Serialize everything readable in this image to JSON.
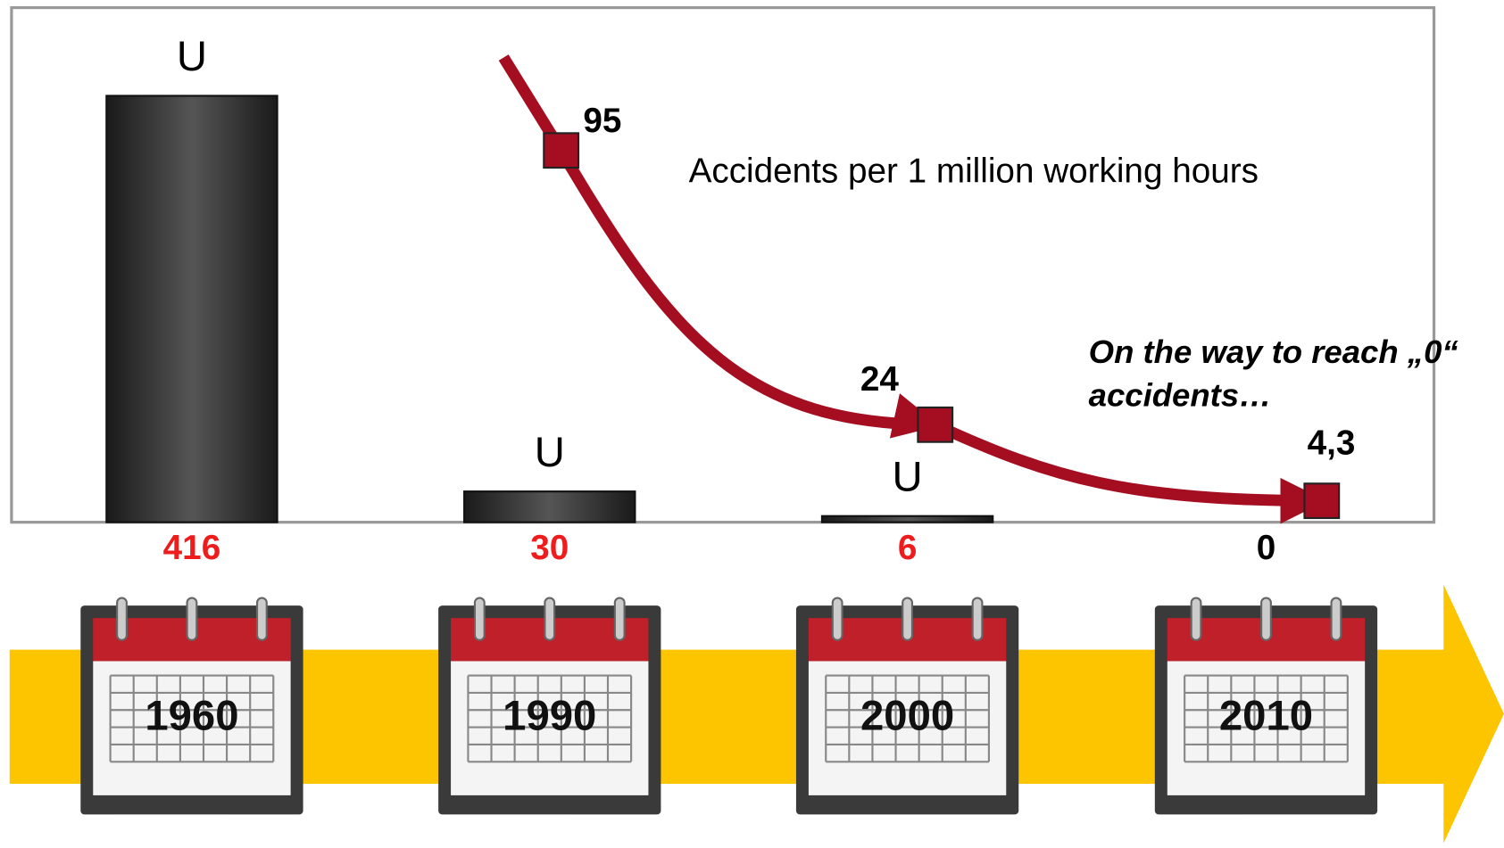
{
  "chart_data": {
    "type": "bar",
    "categories": [
      "1960",
      "1990",
      "2000",
      "2010"
    ],
    "values": [
      416,
      30,
      6,
      0
    ],
    "color": "#2e2e2e",
    "value_label_colors": [
      "#ee1c1c",
      "#ee1c1c",
      "#ee1c1c",
      "#000000"
    ],
    "bar_symbols": [
      "U",
      "U",
      "U",
      null
    ],
    "overlay": {
      "type": "line",
      "title": "Accidents per 1 million working hours",
      "values": [
        null,
        95,
        24,
        4.3
      ],
      "value_labels": [
        null,
        "95",
        "24",
        "4,3"
      ],
      "color": "#a50d21"
    },
    "annotation": [
      "On the way to reach „0“",
      "accidents…"
    ]
  }
}
